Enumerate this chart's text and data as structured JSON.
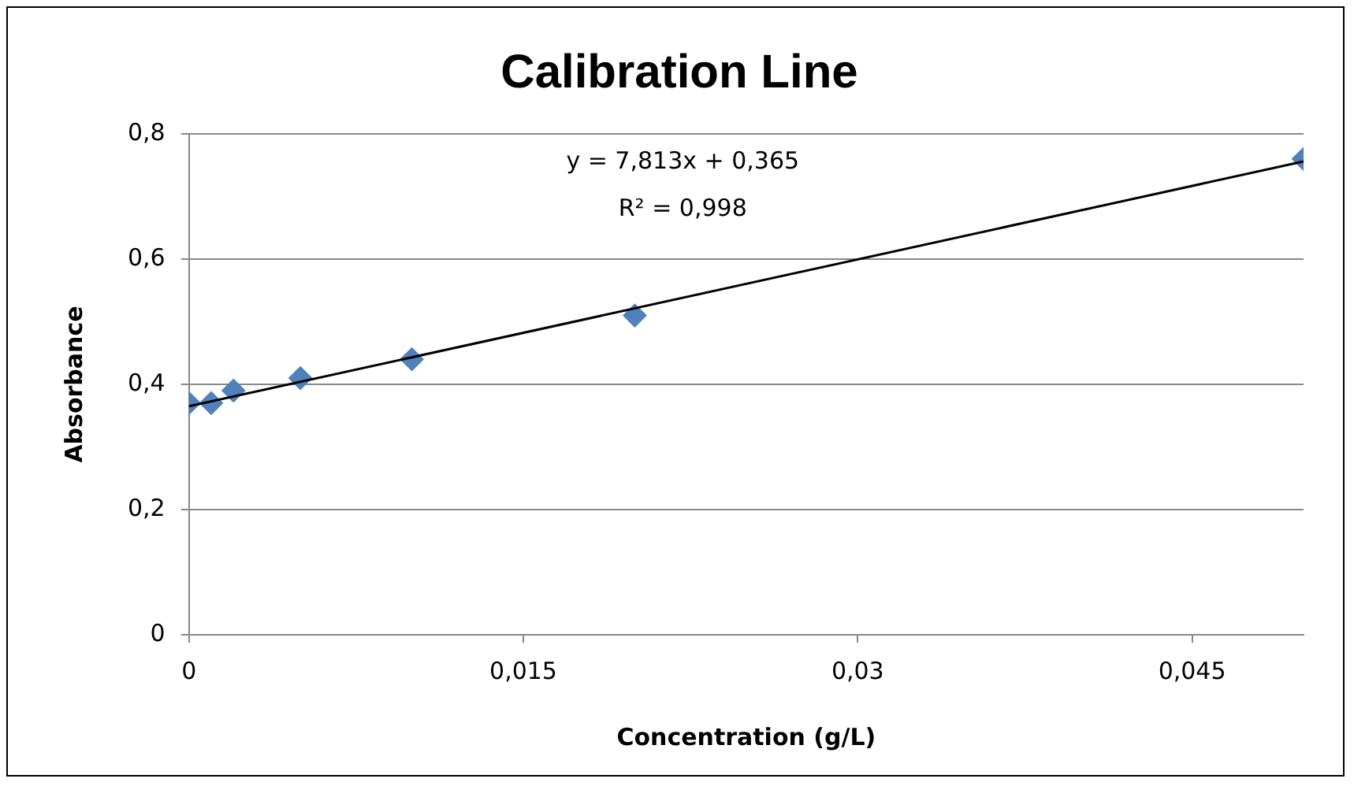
{
  "chart_data": {
    "type": "scatter",
    "title": "Calibration Line",
    "xlabel": "Concentration (g/L)",
    "ylabel": "Absorbance",
    "x": [
      0,
      0.001,
      0.002,
      0.005,
      0.01,
      0.02,
      0.05
    ],
    "series": [
      {
        "color": "#4f81bd",
        "values": [
          0.37,
          0.37,
          0.39,
          0.41,
          0.44,
          0.51,
          0.76
        ],
        "marker": "diamond"
      },
      {
        "type": "line",
        "color": "#000000",
        "x": [
          0,
          0.05
        ],
        "values": [
          0.365,
          0.756
        ],
        "marker": "none"
      }
    ],
    "xlim": [
      0,
      0.05
    ],
    "xticks": [
      0,
      {
        "value": 0.015,
        "label": "0,015"
      },
      {
        "value": 0.03,
        "label": "0,03"
      },
      {
        "value": 0.045,
        "label": "0,045"
      }
    ],
    "ylim": [
      0,
      0.8
    ],
    "yticks": [
      0,
      {
        "value": 0.2,
        "label": "0,2"
      },
      {
        "value": 0.4,
        "label": "0,4"
      },
      {
        "value": 0.6,
        "label": "0,6"
      },
      {
        "value": 0.8,
        "label": "0,8"
      }
    ],
    "grid": "y",
    "legend": false,
    "annotations": [
      "y = 7,813x + 0,365",
      "R² = 0,998"
    ]
  }
}
